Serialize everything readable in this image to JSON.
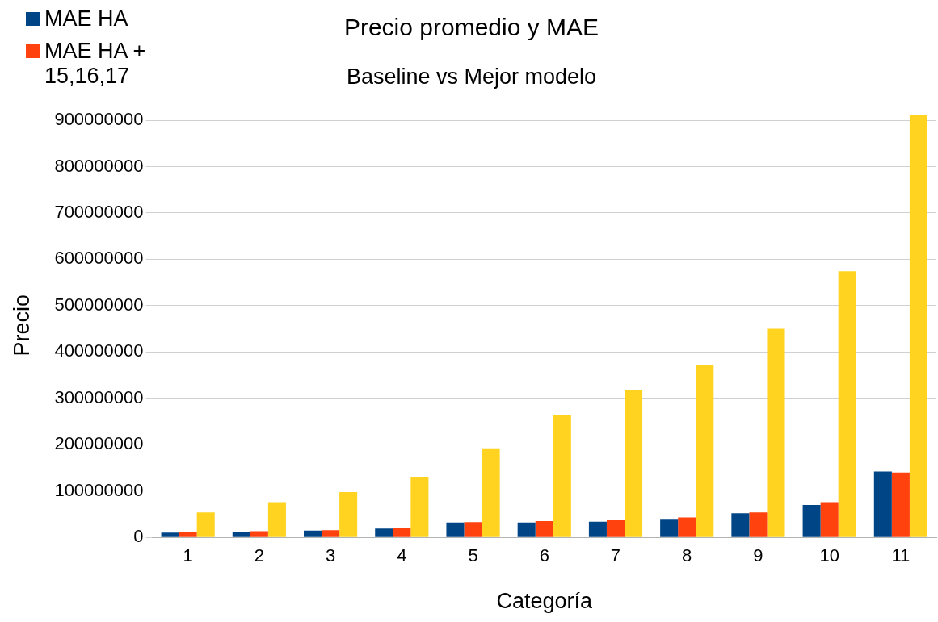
{
  "chart_data": {
    "type": "bar",
    "title": "Precio promedio y MAE",
    "subtitle": "Baseline vs Mejor modelo",
    "xlabel": "Categoría",
    "ylabel": "Precio",
    "categories": [
      "1",
      "2",
      "3",
      "4",
      "5",
      "6",
      "7",
      "8",
      "9",
      "10",
      "11"
    ],
    "series": [
      {
        "name": "MAE HA",
        "color": "#004586",
        "values": [
          10400000,
          11600000,
          14500000,
          19000000,
          32000000,
          32000000,
          34000000,
          40000000,
          52000000,
          70000000,
          142000000
        ]
      },
      {
        "name": "MAE HA + 15,16,17",
        "color": "#ff420e",
        "values": [
          11600000,
          13300000,
          15600000,
          20000000,
          33000000,
          35000000,
          38000000,
          43000000,
          54000000,
          76000000,
          140000000
        ]
      },
      {
        "color": "#ffd320",
        "values": [
          54000000,
          76000000,
          98000000,
          131000000,
          192000000,
          265000000,
          317000000,
          372000000,
          450000000,
          574000000,
          911000000
        ]
      }
    ],
    "ylim": [
      0,
      915000000
    ],
    "yticks": [
      0,
      100000000,
      200000000,
      300000000,
      400000000,
      500000000,
      600000000,
      700000000,
      800000000,
      900000000
    ],
    "grid": "y",
    "legend": "top left"
  }
}
